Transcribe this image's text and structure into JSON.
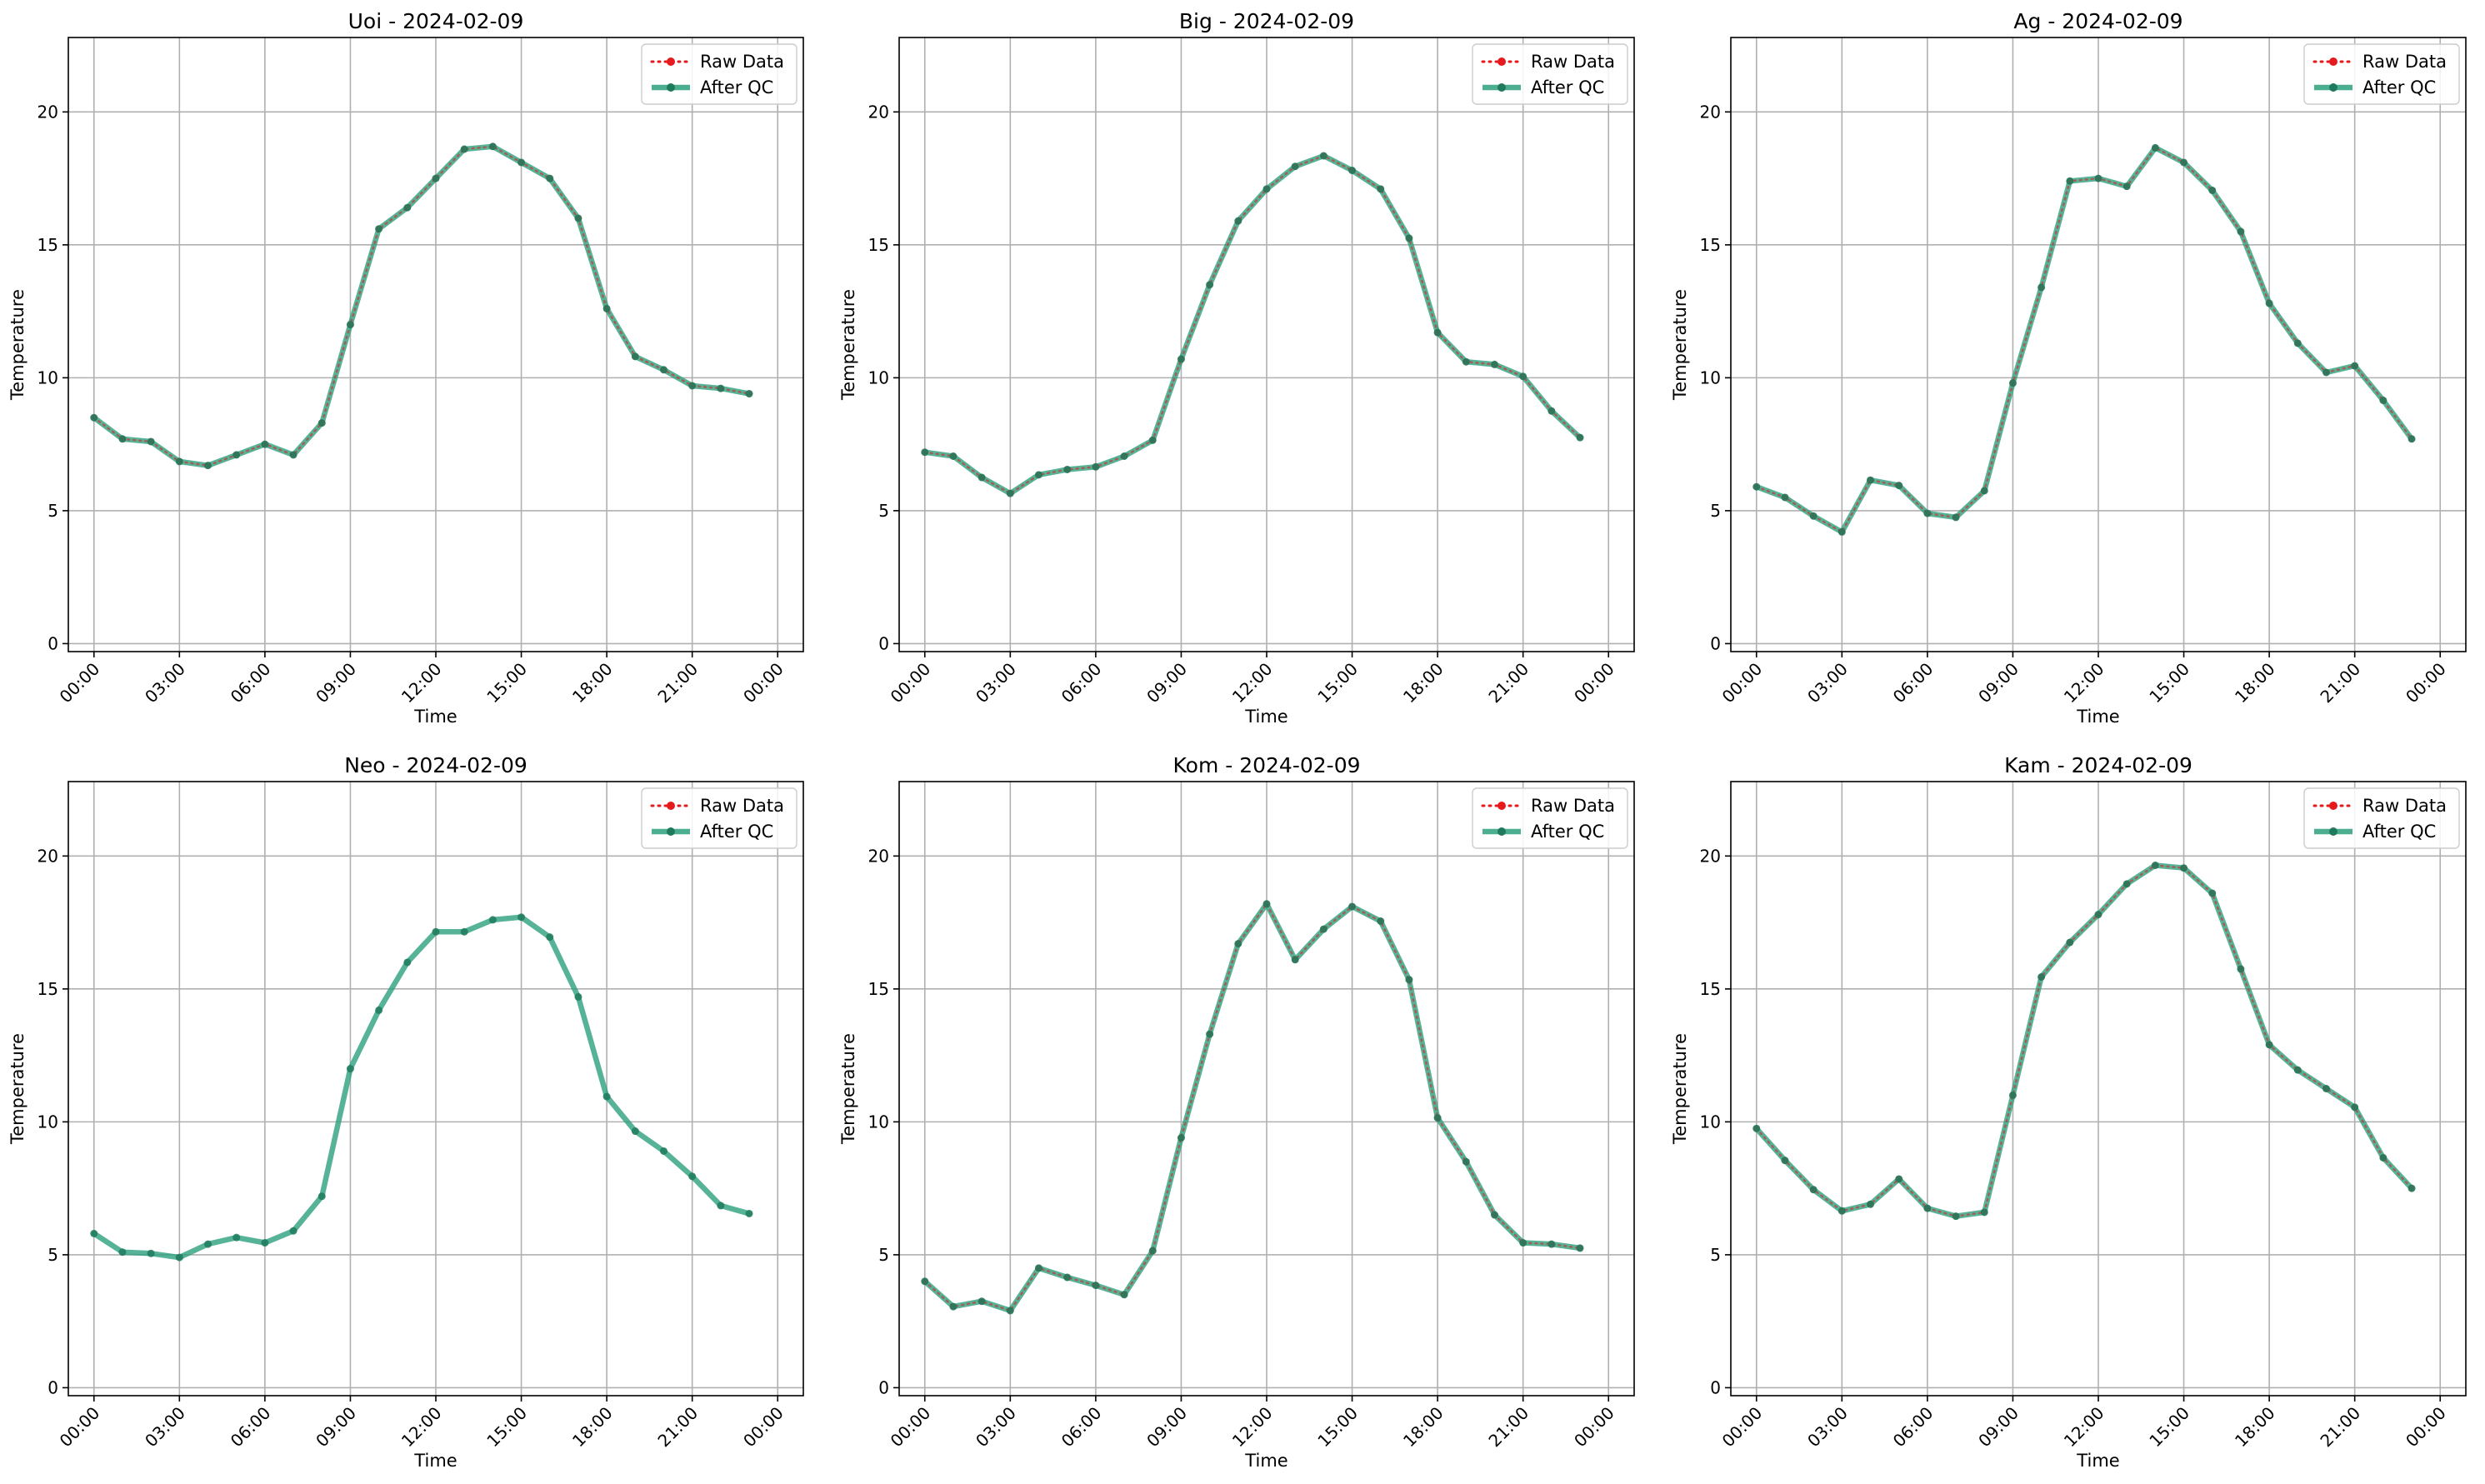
{
  "colors": {
    "raw": "#e41a1c",
    "qc": "#2ca07e",
    "qc_marker": "#1f7a5c",
    "grid": "#b0b0b0"
  },
  "legend": {
    "raw_label": "Raw Data",
    "qc_label": "After QC",
    "placement": "upper right"
  },
  "chart_data": [
    {
      "type": "line",
      "title": "Uoi - 2024-02-09",
      "xlabel": "Time",
      "ylabel": "Temperature",
      "hours": [
        0,
        1,
        2,
        3,
        4,
        5,
        6,
        7,
        8,
        9,
        10,
        11,
        12,
        13,
        14,
        15,
        16,
        17,
        18,
        19,
        20,
        21,
        22,
        23
      ],
      "series": [
        {
          "name": "Raw Data",
          "values": [
            8.5,
            7.7,
            7.6,
            6.85,
            6.7,
            7.1,
            7.5,
            7.1,
            8.3,
            12.0,
            15.6,
            16.4,
            17.5,
            18.6,
            18.7,
            18.1,
            17.5,
            16.0,
            12.6,
            10.8,
            10.3,
            9.7,
            9.6,
            9.4
          ]
        },
        {
          "name": "After QC",
          "values": [
            8.5,
            7.7,
            7.6,
            6.85,
            6.7,
            7.1,
            7.5,
            7.1,
            8.3,
            12.0,
            15.6,
            16.4,
            17.5,
            18.6,
            18.7,
            18.1,
            17.5,
            16.0,
            12.6,
            10.8,
            10.3,
            9.7,
            9.6,
            9.4
          ]
        }
      ],
      "xticks": [
        "00:00",
        "03:00",
        "06:00",
        "09:00",
        "12:00",
        "15:00",
        "18:00",
        "21:00",
        "00:00"
      ],
      "yticks": [
        0,
        5,
        10,
        15,
        20
      ],
      "xlim": [
        -0.9,
        24.9
      ],
      "ylim": [
        -0.3,
        22.8
      ],
      "grid": true
    },
    {
      "type": "line",
      "title": "Big - 2024-02-09",
      "xlabel": "Time",
      "ylabel": "Temperature",
      "hours": [
        0,
        1,
        2,
        3,
        4,
        5,
        6,
        7,
        8,
        9,
        10,
        11,
        12,
        13,
        14,
        15,
        16,
        17,
        18,
        19,
        20,
        21,
        22,
        23
      ],
      "series": [
        {
          "name": "Raw Data",
          "values": [
            7.2,
            7.05,
            6.25,
            5.65,
            6.35,
            6.55,
            6.65,
            7.05,
            7.65,
            10.7,
            13.5,
            15.9,
            17.1,
            17.95,
            18.35,
            17.8,
            17.1,
            15.25,
            11.7,
            10.6,
            10.5,
            10.05,
            8.75,
            7.75
          ]
        },
        {
          "name": "After QC",
          "values": [
            7.2,
            7.05,
            6.25,
            5.65,
            6.35,
            6.55,
            6.65,
            7.05,
            7.65,
            10.7,
            13.5,
            15.9,
            17.1,
            17.95,
            18.35,
            17.8,
            17.1,
            15.25,
            11.7,
            10.6,
            10.5,
            10.05,
            8.75,
            7.75
          ]
        }
      ],
      "xticks": [
        "00:00",
        "03:00",
        "06:00",
        "09:00",
        "12:00",
        "15:00",
        "18:00",
        "21:00",
        "00:00"
      ],
      "yticks": [
        0,
        5,
        10,
        15,
        20
      ],
      "xlim": [
        -0.9,
        24.9
      ],
      "ylim": [
        -0.3,
        22.8
      ],
      "grid": true
    },
    {
      "type": "line",
      "title": "Ag - 2024-02-09",
      "xlabel": "Time",
      "ylabel": "Temperature",
      "hours": [
        0,
        1,
        2,
        3,
        4,
        5,
        6,
        7,
        8,
        9,
        10,
        11,
        12,
        13,
        14,
        15,
        16,
        17,
        18,
        19,
        20,
        21,
        22,
        23
      ],
      "series": [
        {
          "name": "Raw Data",
          "values": [
            5.9,
            5.5,
            4.8,
            4.2,
            6.15,
            5.95,
            4.9,
            4.75,
            5.75,
            9.8,
            13.4,
            17.4,
            17.5,
            17.2,
            18.65,
            18.1,
            17.05,
            15.5,
            12.8,
            11.3,
            10.2,
            10.45,
            9.15,
            7.7
          ]
        },
        {
          "name": "After QC",
          "values": [
            5.9,
            5.5,
            4.8,
            4.2,
            6.15,
            5.95,
            4.9,
            4.75,
            5.75,
            9.8,
            13.4,
            17.4,
            17.5,
            17.2,
            18.65,
            18.1,
            17.05,
            15.5,
            12.8,
            11.3,
            10.2,
            10.45,
            9.15,
            7.7
          ]
        }
      ],
      "xticks": [
        "00:00",
        "03:00",
        "06:00",
        "09:00",
        "12:00",
        "15:00",
        "18:00",
        "21:00",
        "00:00"
      ],
      "yticks": [
        0,
        5,
        10,
        15,
        20
      ],
      "xlim": [
        -0.9,
        24.9
      ],
      "ylim": [
        -0.3,
        22.8
      ],
      "grid": true
    },
    {
      "type": "line",
      "title": "Neo - 2024-02-09",
      "xlabel": "Time",
      "ylabel": "Temperature",
      "hours": [
        0,
        1,
        2,
        3,
        4,
        5,
        6,
        7,
        8,
        9,
        10,
        11,
        12,
        13,
        14,
        15,
        16,
        17,
        18,
        19,
        20,
        21,
        22,
        23
      ],
      "series": [
        {
          "name": "Raw Data",
          "values": []
        },
        {
          "name": "After QC",
          "values": [
            5.8,
            5.1,
            5.05,
            4.9,
            5.4,
            5.65,
            5.45,
            5.9,
            7.2,
            12.0,
            14.2,
            16.0,
            17.15,
            17.15,
            17.6,
            17.7,
            16.95,
            14.7,
            10.95,
            9.65,
            8.9,
            7.95,
            6.85,
            6.55
          ]
        }
      ],
      "xticks": [
        "00:00",
        "03:00",
        "06:00",
        "09:00",
        "12:00",
        "15:00",
        "18:00",
        "21:00",
        "00:00"
      ],
      "yticks": [
        0,
        5,
        10,
        15,
        20
      ],
      "xlim": [
        -0.9,
        24.9
      ],
      "ylim": [
        -0.3,
        22.8
      ],
      "grid": true
    },
    {
      "type": "line",
      "title": "Kom - 2024-02-09",
      "xlabel": "Time",
      "ylabel": "Temperature",
      "hours": [
        0,
        1,
        2,
        3,
        4,
        5,
        6,
        7,
        8,
        9,
        10,
        11,
        12,
        13,
        14,
        15,
        16,
        17,
        18,
        19,
        20,
        21,
        22,
        23
      ],
      "series": [
        {
          "name": "Raw Data",
          "values": [
            4.0,
            3.05,
            3.25,
            2.9,
            4.5,
            4.15,
            3.85,
            3.5,
            5.15,
            9.4,
            13.3,
            16.7,
            18.2,
            16.1,
            17.25,
            18.1,
            17.55,
            15.35,
            10.15,
            8.5,
            6.5,
            5.45,
            5.4,
            5.25
          ]
        },
        {
          "name": "After QC",
          "values": [
            4.0,
            3.05,
            3.25,
            2.9,
            4.5,
            4.15,
            3.85,
            3.5,
            5.15,
            9.4,
            13.3,
            16.7,
            18.2,
            16.1,
            17.25,
            18.1,
            17.55,
            15.35,
            10.15,
            8.5,
            6.5,
            5.45,
            5.4,
            5.25
          ]
        }
      ],
      "xticks": [
        "00:00",
        "03:00",
        "06:00",
        "09:00",
        "12:00",
        "15:00",
        "18:00",
        "21:00",
        "00:00"
      ],
      "yticks": [
        0,
        5,
        10,
        15,
        20
      ],
      "xlim": [
        -0.9,
        24.9
      ],
      "ylim": [
        -0.3,
        22.8
      ],
      "grid": true
    },
    {
      "type": "line",
      "title": "Kam - 2024-02-09",
      "xlabel": "Time",
      "ylabel": "Temperature",
      "hours": [
        0,
        1,
        2,
        3,
        4,
        5,
        6,
        7,
        8,
        9,
        10,
        11,
        12,
        13,
        14,
        15,
        16,
        17,
        18,
        19,
        20,
        21,
        22,
        23
      ],
      "series": [
        {
          "name": "Raw Data",
          "values": [
            9.75,
            8.55,
            7.45,
            6.65,
            6.9,
            7.85,
            6.75,
            6.45,
            6.6,
            11.0,
            15.45,
            16.75,
            17.8,
            18.95,
            19.65,
            19.55,
            18.6,
            15.75,
            12.9,
            11.95,
            11.25,
            10.55,
            8.65,
            7.5
          ]
        },
        {
          "name": "After QC",
          "values": [
            9.75,
            8.55,
            7.45,
            6.65,
            6.9,
            7.85,
            6.75,
            6.45,
            6.6,
            11.0,
            15.45,
            16.75,
            17.8,
            18.95,
            19.65,
            19.55,
            18.6,
            15.75,
            12.9,
            11.95,
            11.25,
            10.55,
            8.65,
            7.5
          ]
        }
      ],
      "xticks": [
        "00:00",
        "03:00",
        "06:00",
        "09:00",
        "12:00",
        "15:00",
        "18:00",
        "21:00",
        "00:00"
      ],
      "yticks": [
        0,
        5,
        10,
        15,
        20
      ],
      "xlim": [
        -0.9,
        24.9
      ],
      "ylim": [
        -0.3,
        22.8
      ],
      "grid": true
    }
  ]
}
